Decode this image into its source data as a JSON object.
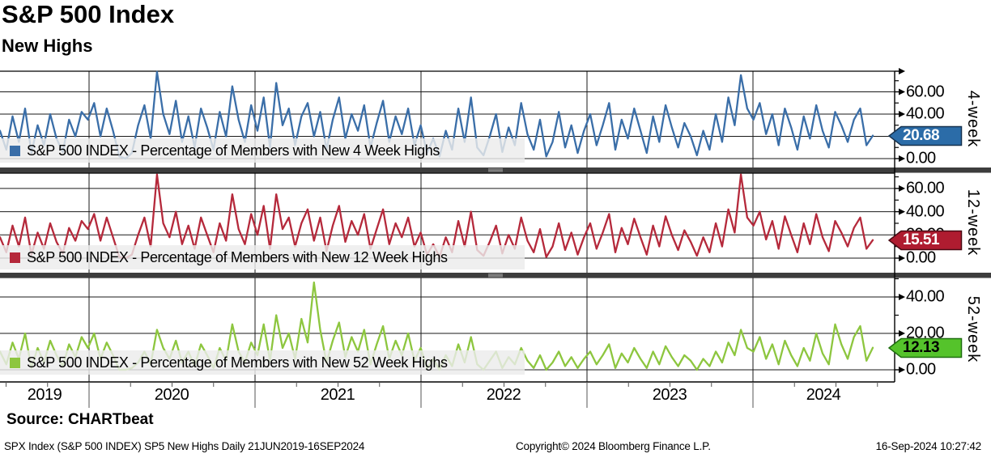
{
  "header": {
    "title": "S&P 500 Index",
    "subtitle": "New Highs"
  },
  "source": {
    "label": "Source: CHARTbeat"
  },
  "footer": {
    "left": "SPX Index (S&P 500 INDEX) SP5 New Highs  Daily 21JUN2019-16SEP2024",
    "center": "Copyright© 2024 Bloomberg Finance L.P.",
    "right": "16-Sep-2024 10:27:42"
  },
  "chart_data": {
    "type": "line",
    "title": "S&P 500 Index - New Highs",
    "x_start": "21JUN2019",
    "x_end": "16SEP2024",
    "frequency": "Daily",
    "years": [
      "2019",
      "2020",
      "2021",
      "2022",
      "2023",
      "2024"
    ],
    "grid": true,
    "legend_position": "inside-bottom-left",
    "panels": [
      {
        "id": "4-week",
        "axis_label": "4-week",
        "legend": "S&P 500 INDEX - Percentage of Members with New 4 Week Highs",
        "line_color": "#3A6EA8",
        "ylim": [
          0,
          78
        ],
        "yticks": [
          0,
          20,
          40,
          60
        ],
        "ytick_labels": [
          "0.00",
          "20.00",
          "40.00",
          "60.00"
        ],
        "minor_yticks": [
          10,
          30,
          50,
          70
        ],
        "last": {
          "value": 20.68,
          "label": "20.68",
          "fill": "#2B6CA8",
          "stroke": "#16324F",
          "text_color": "#FFFFFF"
        },
        "values": [
          25,
          8,
          38,
          15,
          45,
          5,
          30,
          12,
          40,
          18,
          6,
          35,
          20,
          42,
          35,
          50,
          20,
          45,
          25,
          2,
          0,
          5,
          30,
          48,
          18,
          78,
          40,
          22,
          52,
          15,
          38,
          10,
          45,
          28,
          8,
          42,
          20,
          65,
          35,
          15,
          48,
          25,
          55,
          10,
          68,
          30,
          45,
          12,
          38,
          50,
          20,
          42,
          8,
          35,
          55,
          18,
          40,
          25,
          48,
          10,
          32,
          52,
          15,
          38,
          22,
          45,
          12,
          30,
          5,
          18,
          2,
          25,
          8,
          45,
          15,
          55,
          10,
          3,
          20,
          40,
          6,
          28,
          12,
          50,
          22,
          8,
          35,
          2,
          15,
          42,
          10,
          30,
          5,
          25,
          40,
          12,
          30,
          50,
          8,
          35,
          18,
          45,
          25,
          5,
          38,
          15,
          48,
          28,
          10,
          32,
          20,
          3,
          25,
          8,
          40,
          15,
          55,
          30,
          75,
          45,
          35,
          50,
          22,
          40,
          12,
          45,
          28,
          8,
          38,
          18,
          48,
          25,
          10,
          42,
          30,
          15,
          35,
          45,
          12,
          20.68
        ]
      },
      {
        "id": "12-week",
        "axis_label": "12-week",
        "legend": "S&P 500 INDEX - Percentage of Members with New 12 Week Highs",
        "line_color": "#B5293B",
        "ylim": [
          0,
          73
        ],
        "yticks": [
          0,
          20,
          40,
          60
        ],
        "ytick_labels": [
          "0.00",
          "20.00",
          "40.00",
          "60.00"
        ],
        "minor_yticks": [
          10,
          30,
          50,
          70
        ],
        "last": {
          "value": 15.51,
          "label": "15.51",
          "fill": "#AF1C30",
          "stroke": "#4A0A14",
          "text_color": "#FFFFFF"
        },
        "values": [
          18,
          5,
          28,
          10,
          35,
          3,
          22,
          8,
          30,
          14,
          4,
          26,
          15,
          32,
          25,
          38,
          15,
          35,
          18,
          1,
          0,
          3,
          20,
          35,
          10,
          72,
          30,
          18,
          40,
          12,
          28,
          8,
          35,
          20,
          5,
          30,
          15,
          55,
          25,
          12,
          38,
          20,
          45,
          8,
          55,
          25,
          35,
          10,
          30,
          42,
          15,
          35,
          6,
          28,
          45,
          14,
          32,
          20,
          38,
          8,
          25,
          42,
          12,
          30,
          18,
          35,
          10,
          22,
          3,
          12,
          1,
          18,
          5,
          32,
          10,
          40,
          7,
          2,
          14,
          28,
          4,
          20,
          8,
          35,
          15,
          5,
          25,
          1,
          10,
          30,
          7,
          22,
          3,
          18,
          30,
          8,
          22,
          38,
          5,
          26,
          12,
          34,
          18,
          3,
          28,
          10,
          36,
          20,
          7,
          24,
          14,
          2,
          18,
          5,
          30,
          10,
          42,
          22,
          72,
          35,
          28,
          40,
          16,
          32,
          8,
          36,
          20,
          5,
          30,
          12,
          38,
          18,
          6,
          32,
          22,
          10,
          26,
          35,
          8,
          15.51
        ]
      },
      {
        "id": "52-week",
        "axis_label": "52-week",
        "legend": "S&P 500 INDEX - Percentage of Members with New 52 Week Highs",
        "line_color": "#8DC63F",
        "ylim": [
          0,
          50
        ],
        "yticks": [
          0,
          20,
          40
        ],
        "ytick_labels": [
          "0.00",
          "20.00",
          "40.00"
        ],
        "minor_yticks": [
          10,
          30,
          50
        ],
        "last": {
          "value": 12.13,
          "label": "12.13",
          "fill": "#55C32B",
          "stroke": "#1F6E10",
          "text_color": "#000000"
        },
        "values": [
          10,
          3,
          15,
          6,
          20,
          1,
          12,
          4,
          16,
          8,
          2,
          14,
          7,
          18,
          12,
          20,
          6,
          15,
          8,
          0,
          0,
          1,
          4,
          10,
          3,
          22,
          12,
          6,
          16,
          4,
          10,
          2,
          14,
          8,
          1,
          12,
          5,
          25,
          10,
          4,
          15,
          8,
          25,
          5,
          30,
          12,
          20,
          6,
          28,
          15,
          48,
          22,
          4,
          16,
          26,
          7,
          18,
          10,
          22,
          3,
          14,
          24,
          6,
          16,
          8,
          20,
          5,
          12,
          1,
          6,
          0,
          8,
          2,
          14,
          4,
          18,
          3,
          0,
          5,
          10,
          1,
          7,
          3,
          12,
          5,
          1,
          8,
          0,
          4,
          10,
          2,
          7,
          1,
          6,
          10,
          3,
          8,
          14,
          1,
          9,
          4,
          12,
          6,
          1,
          10,
          3,
          13,
          7,
          2,
          8,
          5,
          0,
          6,
          2,
          10,
          4,
          15,
          8,
          22,
          12,
          10,
          18,
          6,
          14,
          3,
          16,
          8,
          2,
          12,
          5,
          20,
          9,
          3,
          25,
          14,
          6,
          18,
          24,
          5,
          12.13
        ]
      }
    ]
  }
}
